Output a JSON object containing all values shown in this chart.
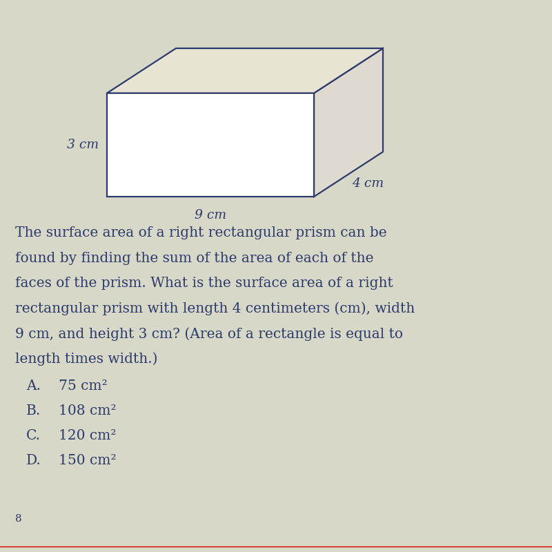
{
  "bg_color": "#d8d8c8",
  "line_color": "#2b3a6b",
  "text_color": "#2b3a6b",
  "label_3cm": "3 cm",
  "label_4cm": "4 cm",
  "label_9cm": "9 cm",
  "question_line1": "The surface area of a right rectangular prism can be",
  "question_line2": "found by finding the sum of the area of each of the",
  "question_line3": "faces of the prism. What is the surface area of a right",
  "question_line4": "rectangular prism with length 4 centimeters (cm), width",
  "question_line5": "9 cm, and height 3 cm? (Area of a rectangle is equal to",
  "question_line6": "length times width.)",
  "choice_A_letter": "A.",
  "choice_A_text": "75 cm²",
  "choice_B_letter": "B.",
  "choice_B_text": "108 cm²",
  "choice_C_letter": "C.",
  "choice_C_text": "120 cm²",
  "choice_D_letter": "D.",
  "choice_D_text": "150 cm²",
  "page_num": "8",
  "font_size_question": 14.5,
  "font_size_choices": 14.5,
  "font_size_dims": 13.5,
  "font_size_page": 11,
  "front_face_color": "#ffffff",
  "top_face_color": "#e8e4d4",
  "right_face_color": "#dedad0",
  "lw": 1.6
}
